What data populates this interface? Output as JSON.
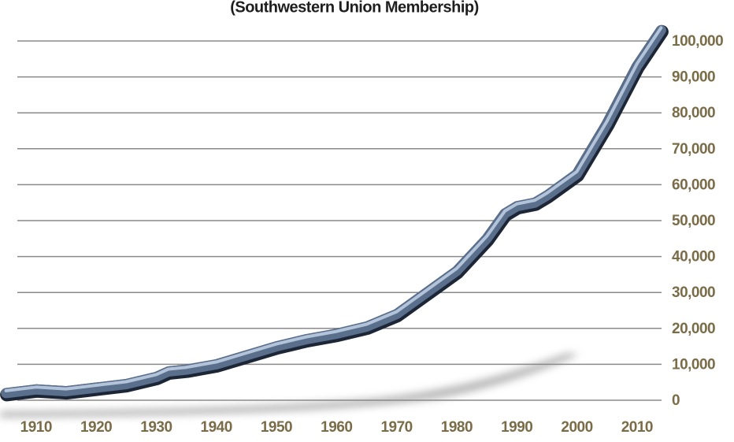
{
  "chart_data": {
    "type": "line",
    "title": "(Southwestern Union Membership)",
    "x": [
      1905,
      1910,
      1915,
      1920,
      1925,
      1930,
      1932,
      1935,
      1940,
      1945,
      1950,
      1955,
      1960,
      1965,
      1970,
      1975,
      1980,
      1985,
      1988,
      1990,
      1993,
      1995,
      2000,
      2005,
      2010,
      2014
    ],
    "values": [
      2000,
      3000,
      2500,
      3500,
      4500,
      6500,
      8000,
      8500,
      10000,
      12500,
      15000,
      17000,
      18500,
      20500,
      24000,
      30000,
      36000,
      45000,
      52000,
      54000,
      55000,
      57000,
      63000,
      77000,
      93000,
      103000
    ],
    "color": "#5a6f8c",
    "xlim": [
      1904,
      2015
    ],
    "xticks": [
      1910,
      1920,
      1930,
      1940,
      1950,
      1960,
      1970,
      1980,
      1990,
      2000,
      2010
    ],
    "ylim": [
      0,
      100000
    ],
    "yticks": [
      0,
      {
        "value": 10000,
        "label": "10,000"
      },
      {
        "value": 20000,
        "label": "20,000"
      },
      {
        "value": 30000,
        "label": "30,000"
      },
      {
        "value": 40000,
        "label": "40,000"
      },
      {
        "value": 50000,
        "label": "50,000"
      },
      {
        "value": 60000,
        "label": "60,000"
      },
      {
        "value": 70000,
        "label": "70,000"
      },
      {
        "value": 80000,
        "label": "80,000"
      },
      {
        "value": 90000,
        "label": "90,000"
      },
      {
        "value": 100000,
        "label": "100,000"
      }
    ],
    "grid": true
  }
}
